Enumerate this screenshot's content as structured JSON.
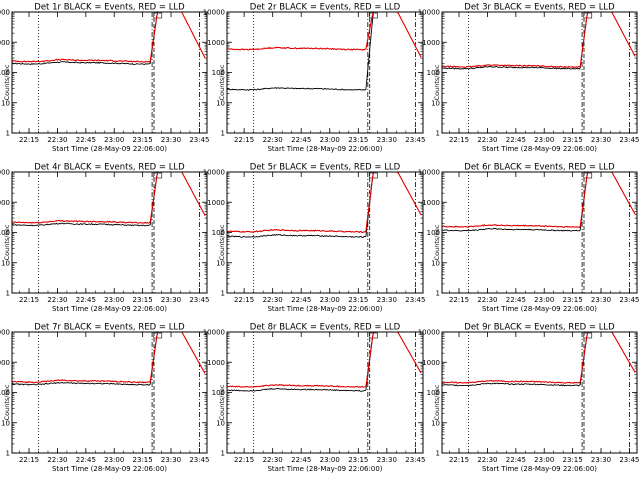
{
  "page": {
    "background": "#ffffff"
  },
  "colors": {
    "events": "#000000",
    "lld": "#e00000",
    "axis": "#000000"
  },
  "shared_axes": {
    "type": "line",
    "y_scale": "log",
    "ylim": [
      1,
      10000
    ],
    "y_tick_labels": [
      "1",
      "10",
      "100",
      "1000",
      "10000"
    ],
    "y_tick_values": [
      1,
      10,
      100,
      1000,
      10000
    ],
    "xlim": [
      "22:06",
      "23:49"
    ],
    "x_tick_labels": [
      "22:15",
      "22:30",
      "22:45",
      "23:00",
      "23:15",
      "23:30",
      "23:45"
    ],
    "x_tick_values": [
      "22:15",
      "22:30",
      "22:45",
      "23:00",
      "23:15",
      "23:30",
      "23:45"
    ],
    "ylabel": "Counts/sec",
    "xlabel": "Start Time (28-May-09 22:06:00)",
    "vlines": [
      {
        "time": "22:20",
        "style": "dotted"
      },
      {
        "time": "23:20",
        "style": "dashdot"
      },
      {
        "time": "23:21",
        "style": "dashed"
      },
      {
        "time": "23:45",
        "style": "dashdot"
      }
    ],
    "marker": "SAA"
  },
  "chart_data": [
    {
      "type": "line",
      "title": "Det 1r BLACK = Events, RED = LLD",
      "ylabel": "Counts/sec",
      "xlabel": "",
      "series": [
        {
          "name": "Events",
          "color": "#000000",
          "base": 200
        },
        {
          "name": "LLD",
          "color": "#e00000",
          "base": 240
        }
      ]
    },
    {
      "type": "line",
      "title": "Det 2r BLACK = Events, RED = LLD",
      "ylabel": "Counts/sec",
      "xlabel": "Start Time (28-May-09 22:06:00)",
      "series": [
        {
          "name": "Events",
          "color": "#000000",
          "base": 28
        },
        {
          "name": "LLD",
          "color": "#e00000",
          "base": 600
        }
      ]
    },
    {
      "type": "line",
      "title": "Det 3r BLACK = Events, RED = LLD",
      "ylabel": "Counts/sec",
      "xlabel": "",
      "series": [
        {
          "name": "Events",
          "color": "#000000",
          "base": 140
        },
        {
          "name": "LLD",
          "color": "#e00000",
          "base": 160
        }
      ]
    },
    {
      "type": "line",
      "title": "Det 4r BLACK = Events, RED = LLD",
      "ylabel": "Counts/sec",
      "xlabel": "",
      "series": [
        {
          "name": "Events",
          "color": "#000000",
          "base": 180
        },
        {
          "name": "LLD",
          "color": "#e00000",
          "base": 220
        }
      ]
    },
    {
      "type": "line",
      "title": "Det 5r BLACK = Events, RED = LLD",
      "ylabel": "Counts/sec",
      "xlabel": "Start Time (28-May-09 22:06:00)",
      "series": [
        {
          "name": "Events",
          "color": "#000000",
          "base": 75
        },
        {
          "name": "LLD",
          "color": "#e00000",
          "base": 110
        }
      ]
    },
    {
      "type": "line",
      "title": "Det 6r BLACK = Events, RED = LLD",
      "ylabel": "Counts/sec",
      "xlabel": "",
      "series": [
        {
          "name": "Events",
          "color": "#000000",
          "base": 120
        },
        {
          "name": "LLD",
          "color": "#e00000",
          "base": 160
        }
      ]
    },
    {
      "type": "line",
      "title": "Det 7r BLACK = Events, RED = LLD",
      "ylabel": "Counts/sec",
      "xlabel": "Start Time (28-May-09 22:06:00)",
      "series": [
        {
          "name": "Events",
          "color": "#000000",
          "base": 190
        },
        {
          "name": "LLD",
          "color": "#e00000",
          "base": 230
        }
      ]
    },
    {
      "type": "line",
      "title": "Det 8r BLACK = Events, RED = LLD",
      "ylabel": "Counts/sec",
      "xlabel": "Start Time (28-May-09 22:06:00)",
      "series": [
        {
          "name": "Events",
          "color": "#000000",
          "base": 120
        },
        {
          "name": "LLD",
          "color": "#e00000",
          "base": 160
        }
      ]
    },
    {
      "type": "line",
      "title": "Det 9r BLACK = Events, RED = LLD",
      "ylabel": "Counts/sec",
      "xlabel": "Start Time (28-May-09 22:06:00)",
      "series": [
        {
          "name": "Events",
          "color": "#000000",
          "base": 180
        },
        {
          "name": "LLD",
          "color": "#e00000",
          "base": 220
        }
      ]
    }
  ]
}
